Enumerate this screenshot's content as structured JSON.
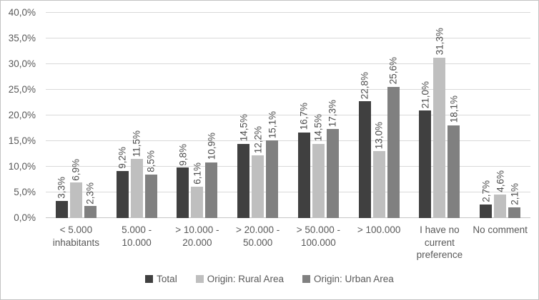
{
  "chart": {
    "background": "#ffffff",
    "border_color": "#c3c3c3",
    "gridline_color": "#d9d9d9",
    "axis_line_color": "#c6c6c6",
    "axis_text_color": "#595959",
    "data_label_color": "#4d4d4d"
  },
  "chart_data": {
    "type": "bar",
    "title": "",
    "xlabel": "",
    "ylabel": "",
    "ylim": [
      0,
      40
    ],
    "y_step": 5,
    "grid": true,
    "legend_position": "bottom",
    "data_label_rotation": 90,
    "y_tick_labels": [
      "0,0%",
      "5,0%",
      "10,0%",
      "15,0%",
      "20,0%",
      "25,0%",
      "30,0%",
      "35,0%",
      "40,0%"
    ],
    "categories": [
      "< 5.000 inhabitants",
      "5.000 - 10.000",
      "> 10.000 - 20.000",
      "> 20.000 - 50.000",
      "> 50.000 - 100.000",
      "> 100.000",
      "I have no current preference",
      "No comment"
    ],
    "series": [
      {
        "name": "Total",
        "color": "#404040",
        "values": [
          3.3,
          9.2,
          9.8,
          14.5,
          16.7,
          22.8,
          21.0,
          2.7
        ],
        "labels": [
          "3,3%",
          "9,2%",
          "9,8%",
          "14,5%",
          "16,7%",
          "22,8%",
          "21,0%",
          "2,7%"
        ]
      },
      {
        "name": "Origin: Rural Area",
        "color": "#bfbfbf",
        "values": [
          6.9,
          11.5,
          6.1,
          12.2,
          14.5,
          13.0,
          31.3,
          4.6
        ],
        "labels": [
          "6,9%",
          "11,5%",
          "6,1%",
          "12,2%",
          "14,5%",
          "13,0%",
          "31,3%",
          "4,6%"
        ]
      },
      {
        "name": "Origin: Urban Area",
        "color": "#808080",
        "values": [
          2.3,
          8.5,
          10.9,
          15.1,
          17.3,
          25.6,
          18.1,
          2.1
        ],
        "labels": [
          "2,3%",
          "8,5%",
          "10,9%",
          "15,1%",
          "17,3%",
          "25,6%",
          "18,1%",
          "2,1%"
        ]
      }
    ]
  }
}
